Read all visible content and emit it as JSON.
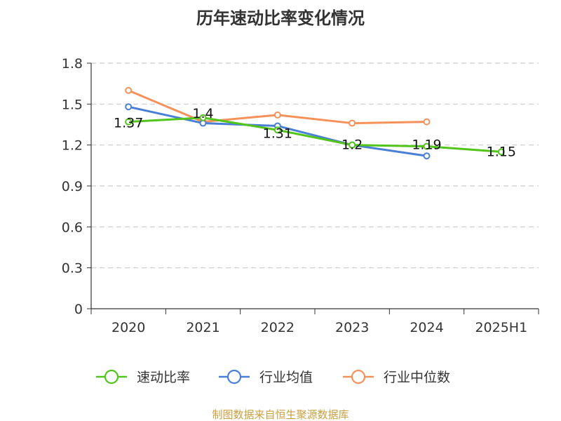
{
  "chart_data": {
    "type": "line",
    "title": "历年速动比率变化情况",
    "categories": [
      "2020",
      "2021",
      "2022",
      "2023",
      "2024",
      "2025H1"
    ],
    "y_ticks": [
      "0",
      "0.3",
      "0.6",
      "0.9",
      "1.2",
      "1.5",
      "1.8"
    ],
    "ylim": [
      0,
      1.8
    ],
    "grid": "horizontal-dashed",
    "legend_position": "bottom",
    "series": [
      {
        "name": "速动比率",
        "color": "#52c41a",
        "values": [
          1.37,
          1.4,
          1.31,
          1.2,
          1.19,
          1.15
        ],
        "labels": [
          "1.37",
          "1.4",
          "1.31",
          "1.2",
          "1.19",
          "1.15"
        ]
      },
      {
        "name": "行业均值",
        "color": "#4a7fd6",
        "values": [
          1.48,
          1.36,
          1.34,
          1.2,
          1.12,
          null
        ]
      },
      {
        "name": "行业中位数",
        "color": "#f5915a",
        "values": [
          1.6,
          1.37,
          1.42,
          1.36,
          1.37,
          null
        ]
      }
    ]
  },
  "footer": "制图数据来自恒生聚源数据库"
}
